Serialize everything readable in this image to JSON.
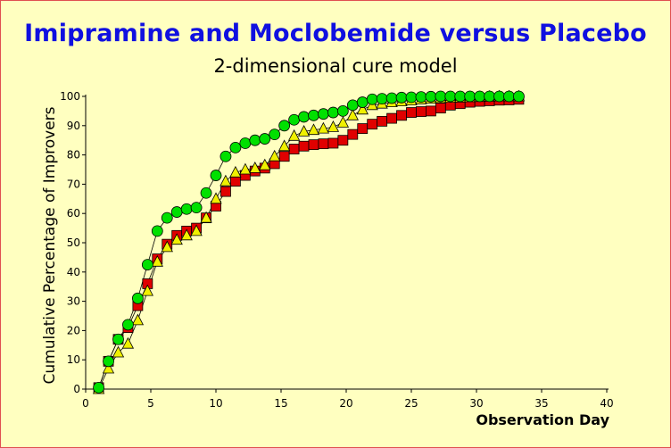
{
  "chart_data": {
    "type": "line",
    "title": "Imipramine and Moclobemide versus Placebo",
    "subtitle": "2-dimensional cure model",
    "xlabel": "Observation Day",
    "ylabel": "Cumulative Percentage of Improvers",
    "xlim": [
      0,
      40
    ],
    "ylim": [
      0,
      100
    ],
    "x_ticks": [
      0,
      5,
      10,
      15,
      20,
      25,
      30,
      35,
      40
    ],
    "y_ticks": [
      0,
      10,
      20,
      30,
      40,
      50,
      60,
      70,
      80,
      90,
      100
    ],
    "x": [
      1,
      1.75,
      2.5,
      3.25,
      4,
      4.75,
      5.5,
      6.25,
      7,
      7.75,
      8.5,
      9.25,
      10,
      10.75,
      11.5,
      12.25,
      13,
      13.75,
      14.5,
      15.25,
      16,
      16.75,
      17.5,
      18.25,
      19,
      19.75,
      20.5,
      21.25,
      22,
      22.75,
      23.5,
      24.25,
      25,
      25.75,
      26.5,
      27.25,
      28,
      28.75,
      29.5,
      30.25,
      31,
      31.75,
      32.5,
      33.25
    ],
    "series": [
      {
        "name": "green-circles",
        "color": "#00e000",
        "marker": "circle",
        "values": [
          0.5,
          9.5,
          17,
          22,
          31,
          42.5,
          54,
          58.5,
          60.5,
          61.5,
          62,
          67,
          73,
          79.5,
          82.5,
          84,
          85,
          85.5,
          87,
          90,
          92,
          93,
          93.5,
          94,
          94.5,
          95,
          97,
          98,
          99,
          99.2,
          99.4,
          99.6,
          99.7,
          99.8,
          99.9,
          100,
          100,
          100,
          100,
          100,
          100,
          100,
          100,
          100
        ]
      },
      {
        "name": "yellow-triangles",
        "color": "#f0f000",
        "marker": "triangle",
        "values": [
          0,
          7,
          12.5,
          15.5,
          23.5,
          33.5,
          43.5,
          48.5,
          51,
          52.5,
          54,
          58.5,
          65,
          71,
          74,
          75,
          75.5,
          76.5,
          79.5,
          83,
          86.5,
          88,
          88.5,
          89,
          89.5,
          91,
          93.5,
          95.5,
          97,
          97.5,
          98,
          98.3,
          98.6,
          99,
          99.2,
          99.4,
          99.5,
          99.6,
          99.7,
          99.8,
          99.9,
          100,
          100,
          100
        ]
      },
      {
        "name": "red-squares",
        "color": "#e00000",
        "marker": "square",
        "values": [
          0.5,
          9.5,
          17,
          21,
          28.5,
          36,
          44.5,
          49.5,
          52.5,
          54,
          55,
          58.5,
          62.5,
          67.5,
          71,
          73,
          74.5,
          75.5,
          77,
          79.5,
          82,
          83,
          83.5,
          83.8,
          84,
          85,
          87,
          89,
          90.5,
          91.5,
          92.5,
          93.5,
          94.5,
          94.8,
          95,
          96,
          97,
          97.5,
          98,
          98.3,
          98.5,
          98.7,
          98.8,
          99
        ]
      }
    ]
  }
}
